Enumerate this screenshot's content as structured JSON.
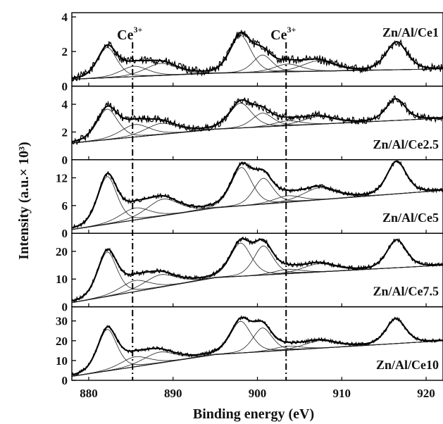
{
  "chart_data": {
    "type": "line",
    "xlabel": "Binding energy (eV)",
    "ylabel": "Intensity (a.u.× 10³)",
    "xlim": [
      878,
      922
    ],
    "x_ticks": [
      "880",
      "890",
      "900",
      "910",
      "920"
    ],
    "reference_lines": [
      {
        "label": "Ce",
        "sup": "3+",
        "x": 885.2
      },
      {
        "label": "Ce",
        "sup": "3+",
        "x": 903.4
      }
    ],
    "panels": [
      {
        "name": "Zn/Al/Ce1",
        "ylim": [
          0,
          4
        ],
        "y_ticks": [
          0,
          2,
          4
        ],
        "noise": 0.25,
        "background": [
          [
            878,
            0.4
          ],
          [
            895,
            0.75
          ],
          [
            922,
            1.0
          ]
        ],
        "peaks": [
          [
            882.2,
            1.75,
            1.2
          ],
          [
            885.4,
            0.6,
            1.7
          ],
          [
            888.6,
            0.7,
            2.0
          ],
          [
            898.0,
            2.15,
            1.3
          ],
          [
            900.6,
            1.0,
            1.2
          ],
          [
            903.6,
            0.45,
            1.7
          ],
          [
            907.2,
            0.6,
            2.0
          ],
          [
            916.5,
            1.6,
            1.3
          ]
        ]
      },
      {
        "name": "Zn/Al/Ce2.5",
        "ylim": [
          0,
          5
        ],
        "y_ticks": [
          0,
          2,
          4
        ],
        "noise": 0.22,
        "background": [
          [
            878,
            1.2
          ],
          [
            895,
            2.2
          ],
          [
            922,
            3.0
          ]
        ],
        "peaks": [
          [
            882.2,
            2.2,
            1.3
          ],
          [
            885.5,
            0.9,
            1.8
          ],
          [
            888.6,
            0.8,
            2.0
          ],
          [
            898.0,
            1.8,
            1.4
          ],
          [
            900.6,
            1.0,
            1.3
          ],
          [
            903.6,
            0.35,
            1.7
          ],
          [
            907.2,
            0.55,
            2.0
          ],
          [
            916.4,
            1.55,
            1.2
          ]
        ]
      },
      {
        "name": "Zn/Al/Ce5",
        "ylim": [
          0,
          15
        ],
        "y_ticks": [
          0,
          6,
          12
        ],
        "noise": 0.12,
        "background": [
          [
            878,
            0.8
          ],
          [
            895,
            5.5
          ],
          [
            922,
            9.3
          ]
        ],
        "peaks": [
          [
            882.2,
            10.3,
            1.2
          ],
          [
            885.5,
            2.6,
            1.8
          ],
          [
            888.8,
            3.6,
            2.0
          ],
          [
            898.1,
            8.3,
            1.3
          ],
          [
            900.7,
            5.6,
            1.2
          ],
          [
            903.6,
            1.4,
            1.7
          ],
          [
            907.3,
            2.6,
            2.0
          ],
          [
            916.5,
            7.0,
            1.2
          ]
        ]
      },
      {
        "name": "Zn/Al/Ce7.5",
        "ylim": [
          0,
          25
        ],
        "y_ticks": [
          0,
          10,
          20
        ],
        "noise": 0.12,
        "background": [
          [
            878,
            1.5
          ],
          [
            895,
            10.5
          ],
          [
            922,
            15.0
          ]
        ],
        "peaks": [
          [
            882.2,
            16.0,
            1.2
          ],
          [
            885.5,
            4.0,
            1.8
          ],
          [
            888.5,
            4.5,
            2.0
          ],
          [
            898.0,
            12.0,
            1.3
          ],
          [
            900.7,
            10.5,
            1.2
          ],
          [
            903.6,
            1.6,
            1.7
          ],
          [
            907.3,
            3.0,
            2.0
          ],
          [
            916.5,
            10.0,
            1.2
          ]
        ]
      },
      {
        "name": "Zn/Al/Ce10",
        "ylim": [
          0,
          35
        ],
        "y_ticks": [
          0,
          10,
          20,
          30
        ],
        "noise": 0.1,
        "background": [
          [
            878,
            2.0
          ],
          [
            895,
            13.0
          ],
          [
            922,
            20.0
          ]
        ],
        "peaks": [
          [
            882.2,
            21.0,
            1.2
          ],
          [
            885.5,
            5.0,
            1.8
          ],
          [
            888.4,
            5.5,
            2.0
          ],
          [
            898.0,
            16.0,
            1.3
          ],
          [
            900.6,
            12.0,
            1.2
          ],
          [
            903.6,
            2.0,
            1.7
          ],
          [
            907.4,
            3.8,
            2.0
          ],
          [
            916.4,
            12.5,
            1.2
          ]
        ]
      }
    ]
  }
}
